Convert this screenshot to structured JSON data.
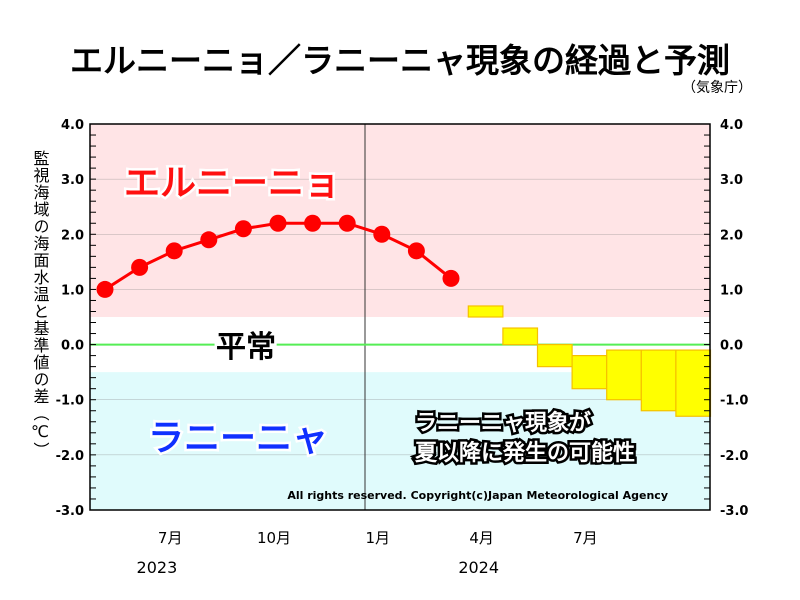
{
  "chart_data": {
    "type": "line",
    "title": "エルニーニョ／ラニーニャ現象の経過と予測",
    "subtitle": "（気象庁）",
    "ylabel": "監視海域の海面水温と基準値の差（℃）",
    "ylim": [
      -3.0,
      4.0
    ],
    "yticks": [
      "4.0",
      "3.0",
      "2.0",
      "1.0",
      "0.0",
      "-1.0",
      "-2.0",
      "-3.0"
    ],
    "ytick_values": [
      4,
      3,
      2,
      1,
      0,
      -1,
      -2,
      -3
    ],
    "x_month_labels": [
      {
        "label": "7月",
        "month": 7
      },
      {
        "label": "10月",
        "month": 10
      },
      {
        "label": "1月",
        "month": 13
      },
      {
        "label": "4月",
        "month": 16
      },
      {
        "label": "7月",
        "month": 19
      }
    ],
    "year_labels": [
      {
        "label": "2023",
        "month": 6.5
      },
      {
        "label": "2024",
        "month": 15.8
      }
    ],
    "observed": {
      "name": "observed",
      "months": [
        5,
        6,
        7,
        8,
        9,
        10,
        11,
        12,
        13,
        14,
        15
      ],
      "values": [
        1.0,
        1.4,
        1.7,
        1.9,
        2.1,
        2.2,
        2.2,
        2.2,
        2.0,
        1.7,
        1.2
      ],
      "color": "#ff0000"
    },
    "forecast": {
      "name": "forecast range",
      "months": [
        16,
        17,
        18,
        19,
        20,
        21,
        22
      ],
      "low": [
        0.5,
        0.0,
        -0.4,
        -0.8,
        -1.0,
        -1.2,
        -1.3
      ],
      "high": [
        0.7,
        0.3,
        0.0,
        -0.2,
        -0.1,
        -0.1,
        -0.1
      ],
      "color": "#ffff00"
    },
    "bands": [
      {
        "label": "エルニーニョ",
        "from": 0.5,
        "to": 4.0,
        "color": "#ffe4e6",
        "text_color": "#ff1010"
      },
      {
        "label": "平常",
        "from": -0.5,
        "to": 0.5,
        "color": "#ffffff",
        "text_color": "#000000"
      },
      {
        "label": "ラニーニャ",
        "from": -3.0,
        "to": -0.5,
        "color": "#e0fbfc",
        "text_color": "#1030ff"
      }
    ],
    "zero_line_color": "#55ee55",
    "annotation": [
      "ラニーニャ現象が",
      "夏以降に発生の可能性"
    ],
    "copyright": "All rights reserved. Copyright(c)Japan Meteorological Agency"
  }
}
